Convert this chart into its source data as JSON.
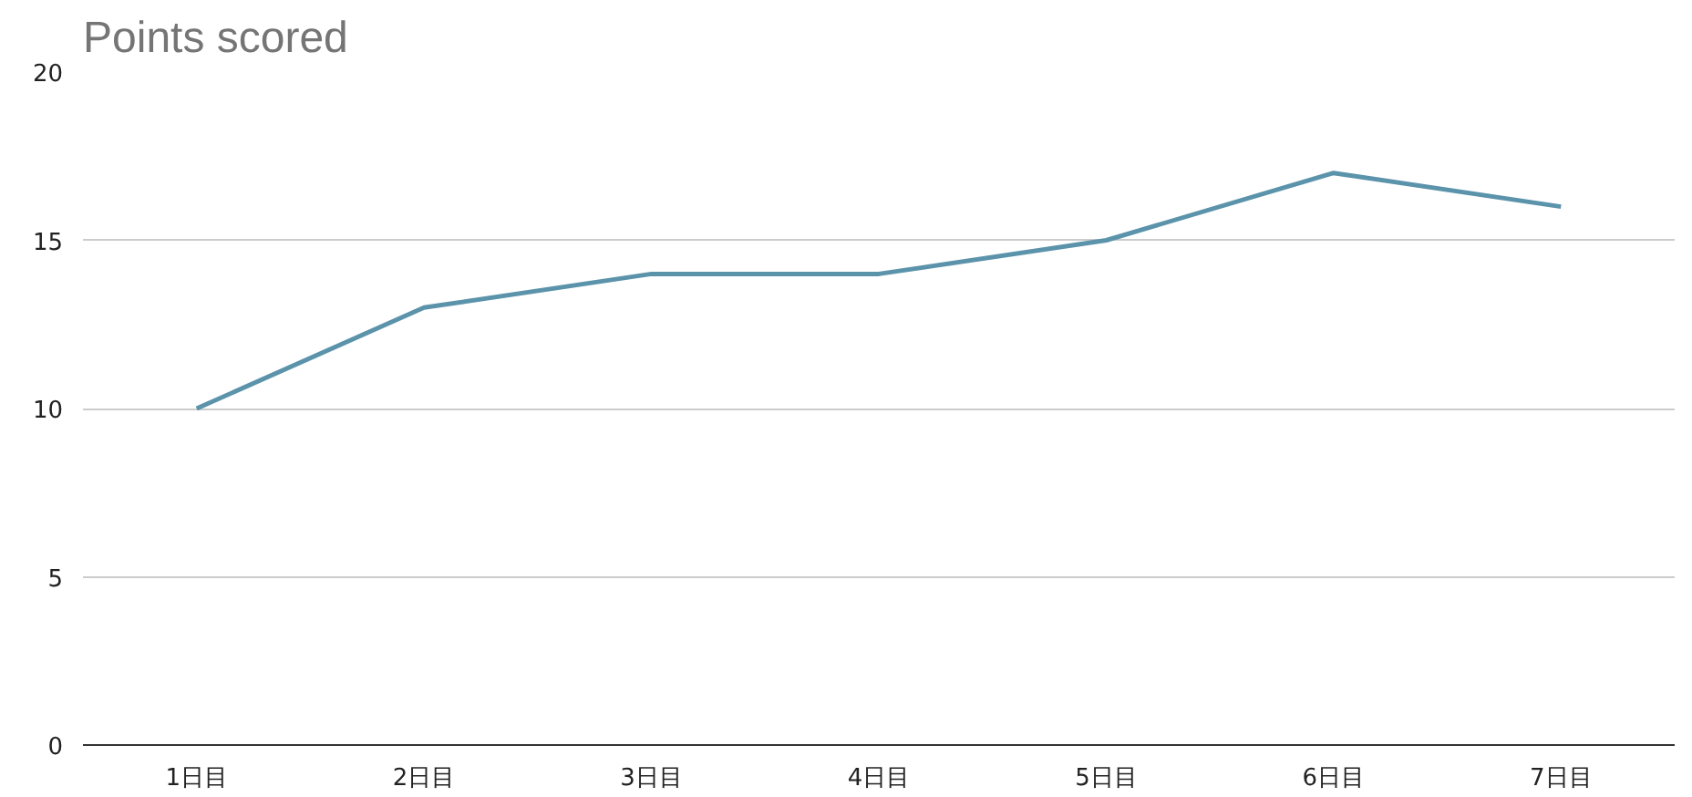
{
  "chart_data": {
    "type": "line",
    "title": "Points scored",
    "categories": [
      "1日目",
      "2日目",
      "3日目",
      "4日目",
      "5日目",
      "6日目",
      "7日目"
    ],
    "series": [
      {
        "color": "#5b93ab",
        "values": [
          10,
          13,
          14,
          14,
          15,
          17,
          16
        ]
      }
    ],
    "ylim": [
      0,
      20
    ],
    "yticks": [
      0,
      5,
      10,
      15,
      20
    ],
    "grid": "y",
    "marker": "none",
    "line_style": "solid"
  }
}
